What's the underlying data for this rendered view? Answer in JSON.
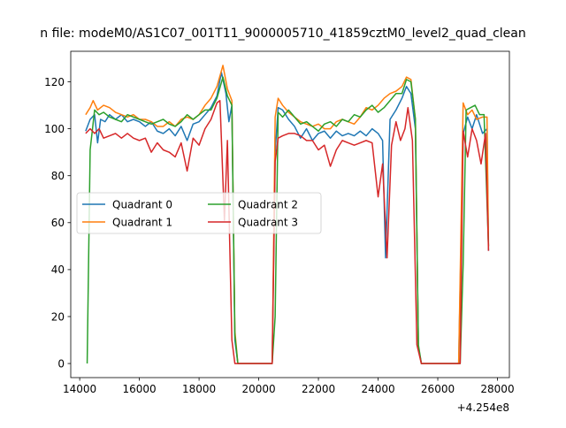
{
  "chart_data": {
    "type": "line",
    "title": "n file: modeM0/AS1C07_001T11_9000005710_41859cztM0_level2_quad_clean",
    "x_offset_label": "+4.254e8",
    "xlim": [
      425413700,
      425428400
    ],
    "ylim": [
      -6,
      133
    ],
    "x_ticks": [
      425414000,
      425416000,
      425418000,
      425420000,
      425422000,
      425424000,
      425426000,
      425428000
    ],
    "x_tick_labels": [
      "14000",
      "16000",
      "18000",
      "20000",
      "22000",
      "24000",
      "26000",
      "28000"
    ],
    "y_ticks": [
      0,
      20,
      40,
      60,
      80,
      100,
      120
    ],
    "y_tick_labels": [
      "0",
      "20",
      "40",
      "60",
      "80",
      "100",
      "120"
    ],
    "legend": {
      "position": "center-left",
      "columns": 2
    },
    "grid": false,
    "series": [
      {
        "name": "Quadrant 0",
        "color": "#1f77b4",
        "points": [
          [
            425414200,
            99
          ],
          [
            425414350,
            104
          ],
          [
            425414500,
            106
          ],
          [
            425414600,
            94
          ],
          [
            425414700,
            104
          ],
          [
            425414850,
            103
          ],
          [
            425415000,
            106
          ],
          [
            425415200,
            104
          ],
          [
            425415400,
            106
          ],
          [
            425415600,
            103
          ],
          [
            425415800,
            104
          ],
          [
            425416000,
            103
          ],
          [
            425416200,
            101
          ],
          [
            425416400,
            103
          ],
          [
            425416600,
            99
          ],
          [
            425416800,
            98
          ],
          [
            425417000,
            100
          ],
          [
            425417200,
            97
          ],
          [
            425417400,
            101
          ],
          [
            425417600,
            95
          ],
          [
            425417800,
            102
          ],
          [
            425418000,
            103
          ],
          [
            425418200,
            106
          ],
          [
            425418400,
            109
          ],
          [
            425418600,
            114
          ],
          [
            425418750,
            124
          ],
          [
            425418900,
            115
          ],
          [
            425419000,
            103
          ],
          [
            425419100,
            110
          ],
          [
            425419200,
            10
          ],
          [
            425419300,
            0
          ],
          [
            425419500,
            0
          ],
          [
            425420300,
            0
          ],
          [
            425420450,
            0
          ],
          [
            425420550,
            90
          ],
          [
            425420650,
            109
          ],
          [
            425420800,
            108
          ],
          [
            425421000,
            104
          ],
          [
            425421200,
            101
          ],
          [
            425421400,
            96
          ],
          [
            425421600,
            100
          ],
          [
            425421800,
            95
          ],
          [
            425422000,
            98
          ],
          [
            425422200,
            99
          ],
          [
            425422400,
            96
          ],
          [
            425422600,
            99
          ],
          [
            425422800,
            97
          ],
          [
            425423000,
            98
          ],
          [
            425423200,
            97
          ],
          [
            425423400,
            99
          ],
          [
            425423600,
            97
          ],
          [
            425423800,
            100
          ],
          [
            425424000,
            98
          ],
          [
            425424150,
            95
          ],
          [
            425424250,
            45
          ],
          [
            425424400,
            104
          ],
          [
            425424600,
            108
          ],
          [
            425424800,
            113
          ],
          [
            425424950,
            118
          ],
          [
            425425100,
            115
          ],
          [
            425425250,
            100
          ],
          [
            425425350,
            7
          ],
          [
            425425450,
            0
          ],
          [
            425426600,
            0
          ],
          [
            425426700,
            0
          ],
          [
            425426850,
            98
          ],
          [
            425427000,
            105
          ],
          [
            425427150,
            100
          ],
          [
            425427300,
            106
          ],
          [
            425427500,
            98
          ],
          [
            425427650,
            100
          ],
          [
            425427700,
            48
          ]
        ]
      },
      {
        "name": "Quadrant 1",
        "color": "#ff7f0e",
        "points": [
          [
            425414200,
            106
          ],
          [
            425414350,
            109
          ],
          [
            425414450,
            112
          ],
          [
            425414600,
            108
          ],
          [
            425414800,
            110
          ],
          [
            425415000,
            109
          ],
          [
            425415200,
            107
          ],
          [
            425415400,
            106
          ],
          [
            425415600,
            105
          ],
          [
            425415800,
            106
          ],
          [
            425416000,
            104
          ],
          [
            425416200,
            104
          ],
          [
            425416400,
            103
          ],
          [
            425416600,
            101
          ],
          [
            425416800,
            101
          ],
          [
            425417000,
            103
          ],
          [
            425417200,
            101
          ],
          [
            425417400,
            104
          ],
          [
            425417600,
            105
          ],
          [
            425417800,
            104
          ],
          [
            425418000,
            106
          ],
          [
            425418200,
            110
          ],
          [
            425418400,
            113
          ],
          [
            425418600,
            118
          ],
          [
            425418800,
            127
          ],
          [
            425418950,
            117
          ],
          [
            425419100,
            112
          ],
          [
            425419200,
            14
          ],
          [
            425419300,
            0
          ],
          [
            425419500,
            0
          ],
          [
            425420300,
            0
          ],
          [
            425420450,
            0
          ],
          [
            425420550,
            105
          ],
          [
            425420650,
            113
          ],
          [
            425420800,
            110
          ],
          [
            425421000,
            107
          ],
          [
            425421200,
            105
          ],
          [
            425421400,
            103
          ],
          [
            425421600,
            102
          ],
          [
            425421800,
            101
          ],
          [
            425422000,
            102
          ],
          [
            425422200,
            100
          ],
          [
            425422400,
            100
          ],
          [
            425422600,
            103
          ],
          [
            425422800,
            104
          ],
          [
            425423000,
            103
          ],
          [
            425423200,
            102
          ],
          [
            425423400,
            105
          ],
          [
            425423600,
            109
          ],
          [
            425423800,
            108
          ],
          [
            425424000,
            110
          ],
          [
            425424200,
            113
          ],
          [
            425424400,
            115
          ],
          [
            425424600,
            116
          ],
          [
            425424800,
            118
          ],
          [
            425424950,
            122
          ],
          [
            425425100,
            121
          ],
          [
            425425250,
            104
          ],
          [
            425425350,
            6
          ],
          [
            425425450,
            0
          ],
          [
            425426600,
            0
          ],
          [
            425426700,
            0
          ],
          [
            425426850,
            111
          ],
          [
            425427000,
            106
          ],
          [
            425427150,
            108
          ],
          [
            425427300,
            104
          ],
          [
            425427500,
            105
          ],
          [
            425427650,
            105
          ],
          [
            425427700,
            50
          ]
        ]
      },
      {
        "name": "Quadrant 2",
        "color": "#2ca02c",
        "points": [
          [
            425414250,
            0
          ],
          [
            425414350,
            91
          ],
          [
            425414500,
            108
          ],
          [
            425414650,
            106
          ],
          [
            425414800,
            107
          ],
          [
            425415000,
            105
          ],
          [
            425415200,
            104
          ],
          [
            425415400,
            103
          ],
          [
            425415600,
            106
          ],
          [
            425415800,
            105
          ],
          [
            425416000,
            104
          ],
          [
            425416200,
            103
          ],
          [
            425416400,
            102
          ],
          [
            425416600,
            103
          ],
          [
            425416800,
            104
          ],
          [
            425417000,
            102
          ],
          [
            425417200,
            101
          ],
          [
            425417400,
            103
          ],
          [
            425417600,
            106
          ],
          [
            425417800,
            104
          ],
          [
            425418000,
            106
          ],
          [
            425418200,
            108
          ],
          [
            425418400,
            108
          ],
          [
            425418600,
            113
          ],
          [
            425418800,
            122
          ],
          [
            425418950,
            114
          ],
          [
            425419100,
            110
          ],
          [
            425419200,
            12
          ],
          [
            425419300,
            0
          ],
          [
            425419500,
            0
          ],
          [
            425420300,
            0
          ],
          [
            425420450,
            0
          ],
          [
            425420550,
            20
          ],
          [
            425420650,
            107
          ],
          [
            425420800,
            105
          ],
          [
            425421000,
            108
          ],
          [
            425421200,
            105
          ],
          [
            425421400,
            102
          ],
          [
            425421600,
            103
          ],
          [
            425421800,
            101
          ],
          [
            425422000,
            99
          ],
          [
            425422200,
            102
          ],
          [
            425422400,
            103
          ],
          [
            425422600,
            101
          ],
          [
            425422800,
            104
          ],
          [
            425423000,
            103
          ],
          [
            425423200,
            106
          ],
          [
            425423400,
            105
          ],
          [
            425423600,
            108
          ],
          [
            425423800,
            110
          ],
          [
            425424000,
            107
          ],
          [
            425424200,
            109
          ],
          [
            425424400,
            112
          ],
          [
            425424600,
            115
          ],
          [
            425424800,
            115
          ],
          [
            425424950,
            121
          ],
          [
            425425100,
            120
          ],
          [
            425425250,
            104
          ],
          [
            425425350,
            8
          ],
          [
            425425450,
            0
          ],
          [
            425426600,
            0
          ],
          [
            425426750,
            0
          ],
          [
            425426850,
            42
          ],
          [
            425426950,
            108
          ],
          [
            425427100,
            109
          ],
          [
            425427250,
            110
          ],
          [
            425427400,
            106
          ],
          [
            425427550,
            106
          ],
          [
            425427700,
            50
          ]
        ]
      },
      {
        "name": "Quadrant 3",
        "color": "#d62728",
        "points": [
          [
            425414200,
            98
          ],
          [
            425414350,
            100
          ],
          [
            425414500,
            98
          ],
          [
            425414650,
            100
          ],
          [
            425414800,
            96
          ],
          [
            425415000,
            97
          ],
          [
            425415200,
            98
          ],
          [
            425415400,
            96
          ],
          [
            425415600,
            98
          ],
          [
            425415800,
            96
          ],
          [
            425416000,
            95
          ],
          [
            425416200,
            96
          ],
          [
            425416400,
            90
          ],
          [
            425416600,
            94
          ],
          [
            425416800,
            91
          ],
          [
            425417000,
            90
          ],
          [
            425417200,
            88
          ],
          [
            425417400,
            94
          ],
          [
            425417600,
            82
          ],
          [
            425417800,
            96
          ],
          [
            425418000,
            93
          ],
          [
            425418200,
            100
          ],
          [
            425418400,
            104
          ],
          [
            425418600,
            111
          ],
          [
            425418700,
            112
          ],
          [
            425418850,
            61
          ],
          [
            425418950,
            95
          ],
          [
            425419100,
            10
          ],
          [
            425419200,
            0
          ],
          [
            425419500,
            0
          ],
          [
            425420300,
            0
          ],
          [
            425420450,
            0
          ],
          [
            425420550,
            86
          ],
          [
            425420650,
            96
          ],
          [
            425420800,
            97
          ],
          [
            425421000,
            98
          ],
          [
            425421200,
            98
          ],
          [
            425421400,
            97
          ],
          [
            425421600,
            95
          ],
          [
            425421800,
            95
          ],
          [
            425422000,
            91
          ],
          [
            425422200,
            93
          ],
          [
            425422400,
            84
          ],
          [
            425422600,
            91
          ],
          [
            425422800,
            95
          ],
          [
            425423000,
            94
          ],
          [
            425423200,
            93
          ],
          [
            425423400,
            94
          ],
          [
            425423600,
            95
          ],
          [
            425423800,
            94
          ],
          [
            425424000,
            71
          ],
          [
            425424150,
            85
          ],
          [
            425424300,
            45
          ],
          [
            425424450,
            93
          ],
          [
            425424600,
            103
          ],
          [
            425424750,
            95
          ],
          [
            425424900,
            100
          ],
          [
            425425000,
            109
          ],
          [
            425425150,
            95
          ],
          [
            425425300,
            8
          ],
          [
            425425450,
            0
          ],
          [
            425426600,
            0
          ],
          [
            425426750,
            0
          ],
          [
            425426850,
            99
          ],
          [
            425427000,
            88
          ],
          [
            425427150,
            100
          ],
          [
            425427300,
            95
          ],
          [
            425427450,
            85
          ],
          [
            425427600,
            98
          ],
          [
            425427700,
            48
          ]
        ]
      }
    ]
  }
}
